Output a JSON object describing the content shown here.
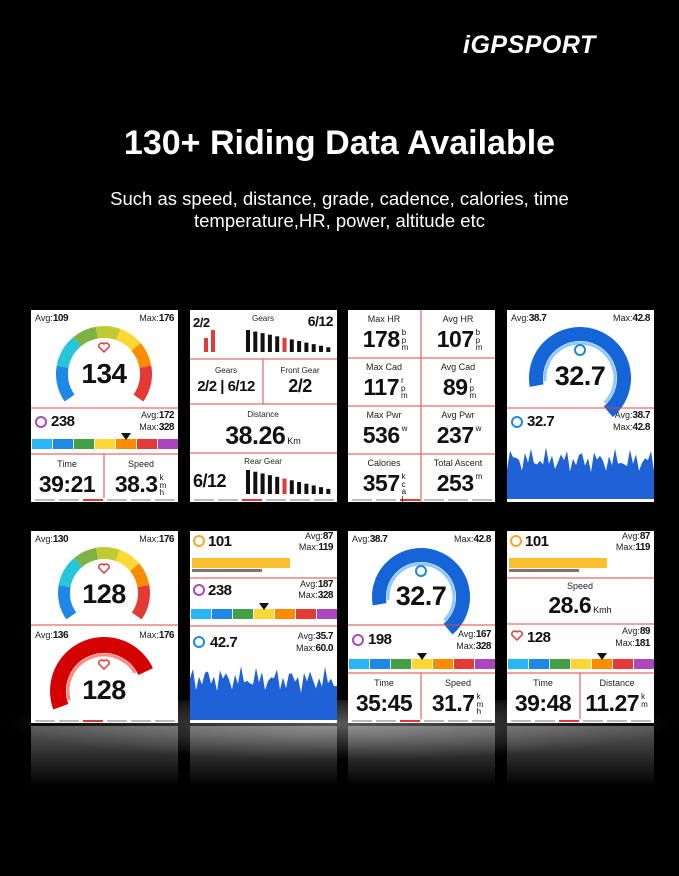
{
  "brand": "iGPSPORT",
  "headline": "130+ Riding Data Available",
  "subline": [
    "Such as speed, distance, grade, cadence, calories, time",
    "temperature,HR, power, altitude etc"
  ],
  "screens": [
    {
      "hr_avg_label": "Avg:",
      "hr_avg": "109",
      "hr_max_label": "Max:",
      "hr_max": "176",
      "hr": "134",
      "power": "238",
      "power_avg_label": "Avg:",
      "power_avg": "172",
      "power_max_label": "Max:",
      "power_max": "328",
      "time_label": "Time",
      "time": "39:21",
      "speed_label": "Speed",
      "speed": "38.3",
      "speed_unit": "kmh"
    },
    {
      "gears_left": "2/2",
      "gears_label": "Gears",
      "gears_right": "6/12",
      "combo_label": "Gears",
      "combo": "2/2 | 6/12",
      "front_label": "Front Gear",
      "front": "2/2",
      "distance_label": "Distance",
      "distance": "38.26",
      "distance_suffix": "Km",
      "rear_label": "Rear Gear",
      "rear": "6/12"
    },
    {
      "cells": [
        {
          "label": "Max HR",
          "value": "178",
          "unit": "bpm"
        },
        {
          "label": "Avg HR",
          "value": "107",
          "unit": "bpm"
        },
        {
          "label": "Max Cad",
          "value": "117",
          "unit": "rpm"
        },
        {
          "label": "Avg Cad",
          "value": "89",
          "unit": "rpm"
        },
        {
          "label": "Max Pwr",
          "value": "536",
          "unit": "w"
        },
        {
          "label": "Avg Pwr",
          "value": "237",
          "unit": "w"
        },
        {
          "label": "Calories",
          "value": "357",
          "unit": "kcal"
        },
        {
          "label": "Total Ascent",
          "value": "253",
          "unit": "m"
        }
      ]
    },
    {
      "avg_label": "Avg:",
      "avg": "38.7",
      "max_label": "Max:",
      "max": "42.8",
      "gauge_value": "32.7",
      "current": "32.7",
      "cur_avg_label": "Avg:",
      "cur_avg": "38.7",
      "cur_max_label": "Max:",
      "cur_max": "42.8"
    },
    {
      "avg_label": "Avg:",
      "avg": "130",
      "max_label": "Max:",
      "max": "176",
      "hr": "128",
      "avg2_label": "Avg:",
      "avg2": "136",
      "max2_label": "Max:",
      "max2": "176",
      "hr2": "128"
    },
    {
      "cad": "101",
      "cad_avg_label": "Avg:",
      "cad_avg": "87",
      "cad_max_label": "Max:",
      "cad_max": "119",
      "power": "238",
      "pw_avg_label": "Avg:",
      "pw_avg": "187",
      "pw_max_label": "Max:",
      "pw_max": "328",
      "speed": "42.7",
      "sp_avg_label": "Avg:",
      "sp_avg": "35.7",
      "sp_max_label": "Max:",
      "sp_max": "60.0"
    },
    {
      "avg_label": "Avg:",
      "avg": "38.7",
      "max_label": "Max:",
      "max": "42.8",
      "gauge_value": "32.7",
      "power": "198",
      "pw_avg_label": "Avg:",
      "pw_avg": "167",
      "pw_max_label": "Max:",
      "pw_max": "328",
      "time_label": "Time",
      "time": "35:45",
      "speed_label": "Speed",
      "speed": "31.7",
      "speed_unit": "kmh"
    },
    {
      "cad": "101",
      "cad_avg_label": "Avg:",
      "cad_avg": "87",
      "cad_max_label": "Max:",
      "cad_max": "119",
      "speed_label": "Speed",
      "speed": "28.6",
      "speed_suffix": "Kmh",
      "hr": "128",
      "hr_avg_label": "Avg:",
      "hr_avg": "89",
      "hr_max_label": "Max:",
      "hr_max": "181",
      "time_label": "Time",
      "time": "39:48",
      "distance_label": "Distance",
      "distance": "11.27",
      "distance_unit": "km"
    }
  ]
}
